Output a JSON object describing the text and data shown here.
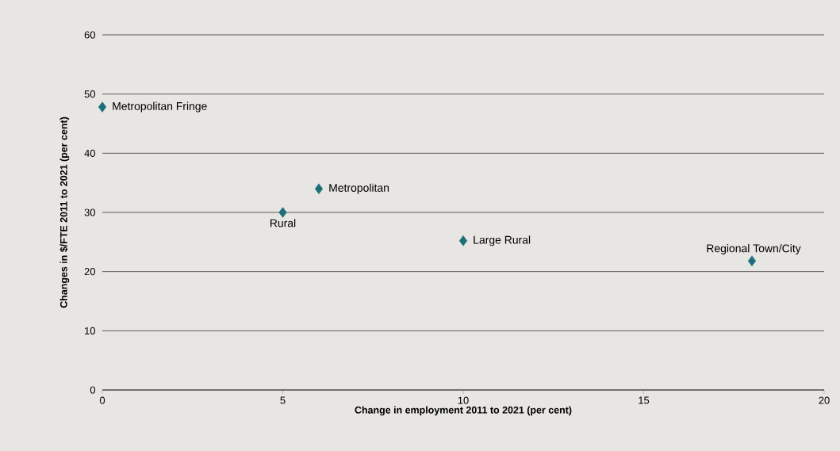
{
  "chart_data": {
    "type": "scatter",
    "xlabel": "Change in employment 2011 to 2021 (per cent)",
    "ylabel": "Changes in $/FTE  2011 to 2021 (per cent)",
    "x": [
      0,
      5,
      6,
      10,
      18
    ],
    "values": [
      47.8,
      30,
      34,
      25.2,
      21.8
    ],
    "color": "#1b6f78",
    "marker": "diamond",
    "grid": "y",
    "xlim": [
      0,
      20
    ],
    "xticks": [
      0,
      5,
      10,
      15,
      20
    ],
    "ylim": [
      0,
      60
    ],
    "yticks": [
      0,
      10,
      20,
      30,
      40,
      50,
      60
    ],
    "annotations": [
      {
        "text": "Metropolitan Fringe",
        "x": 0,
        "y": 47.8
      },
      {
        "text": "Rural",
        "x": 5,
        "y": 30
      },
      {
        "text": "Metropolitan",
        "x": 6,
        "y": 34
      },
      {
        "text": "Large Rural",
        "x": 10,
        "y": 25.2
      },
      {
        "text": "Regional Town/City",
        "x": 18,
        "y": 21.8
      }
    ]
  }
}
